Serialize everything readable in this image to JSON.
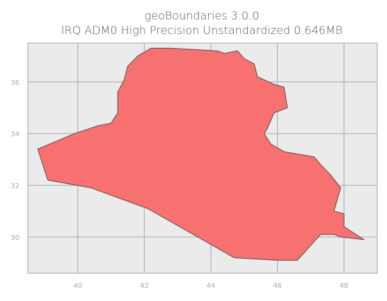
{
  "title": {
    "line1": "geoBoundaries 3.0.0",
    "line2": "IRQ ADM0 High Precision Unstandardized 0.646MB"
  },
  "map": {
    "x_ticks": [
      "40",
      "42",
      "44",
      "46",
      "48"
    ],
    "y_ticks": [
      "36",
      "34",
      "32",
      "30"
    ],
    "x_range": [
      38.5,
      49.0
    ],
    "y_range": [
      28.6,
      37.5
    ],
    "grid": true,
    "colors": {
      "background": "#ebebeb",
      "grid": "#b0b0b0",
      "frame": "#bdbdbd",
      "fill": "#f87171",
      "stroke": "#5a4a4a"
    },
    "boundary_lonlat": [
      [
        38.8,
        33.4
      ],
      [
        39.9,
        34.0
      ],
      [
        40.6,
        34.3
      ],
      [
        41.0,
        34.4
      ],
      [
        41.2,
        34.8
      ],
      [
        41.2,
        35.6
      ],
      [
        41.4,
        36.1
      ],
      [
        41.5,
        36.6
      ],
      [
        41.8,
        37.0
      ],
      [
        42.2,
        37.3
      ],
      [
        42.8,
        37.3
      ],
      [
        43.5,
        37.25
      ],
      [
        44.2,
        37.2
      ],
      [
        44.4,
        37.1
      ],
      [
        44.8,
        37.2
      ],
      [
        45.0,
        36.9
      ],
      [
        45.3,
        36.7
      ],
      [
        45.4,
        36.2
      ],
      [
        45.9,
        35.9
      ],
      [
        46.2,
        35.8
      ],
      [
        46.3,
        35.0
      ],
      [
        45.9,
        34.8
      ],
      [
        45.7,
        34.2
      ],
      [
        45.6,
        34.0
      ],
      [
        45.8,
        33.6
      ],
      [
        46.2,
        33.3
      ],
      [
        47.1,
        33.1
      ],
      [
        47.3,
        32.8
      ],
      [
        47.6,
        32.4
      ],
      [
        47.9,
        31.9
      ],
      [
        47.7,
        31.0
      ],
      [
        48.0,
        30.9
      ],
      [
        48.0,
        30.4
      ],
      [
        48.6,
        29.9
      ],
      [
        47.9,
        30.0
      ],
      [
        47.7,
        30.1
      ],
      [
        47.3,
        30.1
      ],
      [
        46.6,
        29.1
      ],
      [
        46.0,
        29.1
      ],
      [
        44.7,
        29.2
      ],
      [
        42.1,
        31.1
      ],
      [
        40.4,
        31.9
      ],
      [
        39.1,
        32.2
      ],
      [
        39.0,
        32.6
      ],
      [
        38.8,
        33.4
      ]
    ]
  }
}
